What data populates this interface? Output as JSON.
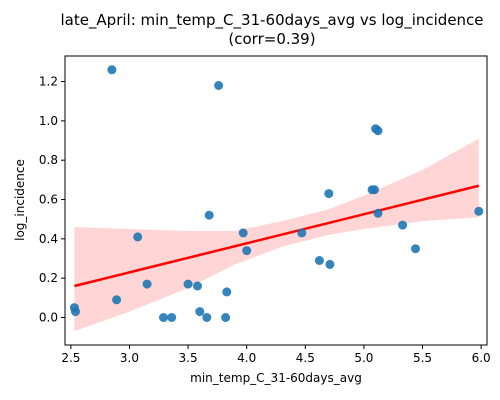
{
  "chart_data": {
    "type": "scatter",
    "title": "late_April: min_temp_C_31-60days_avg vs log_incidence",
    "subtitle": "(corr=0.39)",
    "xlabel": "min_temp_C_31-60days_avg",
    "ylabel": "log_incidence",
    "xlim": [
      2.45,
      6.05
    ],
    "ylim": [
      -0.14,
      1.33
    ],
    "xticks": [
      2.5,
      3.0,
      3.5,
      4.0,
      4.5,
      5.0,
      5.5,
      6.0
    ],
    "xtick_labels": [
      "2.5",
      "3.0",
      "3.5",
      "4.0",
      "4.5",
      "5.0",
      "5.5",
      "6.0"
    ],
    "yticks": [
      0.0,
      0.2,
      0.4,
      0.6,
      0.8,
      1.0,
      1.2
    ],
    "ytick_labels": [
      "0.0",
      "0.2",
      "0.4",
      "0.6",
      "0.8",
      "1.0",
      "1.2"
    ],
    "grid": false,
    "point_color": "#1f77b4",
    "line_color": "#ff0000",
    "band_color": "#ffb3b3",
    "points": [
      {
        "x": 2.53,
        "y": 0.05
      },
      {
        "x": 2.54,
        "y": 0.03
      },
      {
        "x": 2.85,
        "y": 1.26
      },
      {
        "x": 2.89,
        "y": 0.09
      },
      {
        "x": 3.07,
        "y": 0.41
      },
      {
        "x": 3.15,
        "y": 0.17
      },
      {
        "x": 3.29,
        "y": 0.0
      },
      {
        "x": 3.36,
        "y": 0.0
      },
      {
        "x": 3.5,
        "y": 0.17
      },
      {
        "x": 3.58,
        "y": 0.16
      },
      {
        "x": 3.6,
        "y": 0.03
      },
      {
        "x": 3.66,
        "y": 0.0
      },
      {
        "x": 3.68,
        "y": 0.52
      },
      {
        "x": 3.76,
        "y": 1.18
      },
      {
        "x": 3.82,
        "y": 0.0
      },
      {
        "x": 3.83,
        "y": 0.13
      },
      {
        "x": 3.97,
        "y": 0.43
      },
      {
        "x": 4.0,
        "y": 0.34
      },
      {
        "x": 4.47,
        "y": 0.43
      },
      {
        "x": 4.62,
        "y": 0.29
      },
      {
        "x": 4.7,
        "y": 0.63
      },
      {
        "x": 4.71,
        "y": 0.27
      },
      {
        "x": 5.07,
        "y": 0.65
      },
      {
        "x": 5.09,
        "y": 0.65
      },
      {
        "x": 5.1,
        "y": 0.96
      },
      {
        "x": 5.12,
        "y": 0.95
      },
      {
        "x": 5.12,
        "y": 0.53
      },
      {
        "x": 5.33,
        "y": 0.47
      },
      {
        "x": 5.44,
        "y": 0.35
      },
      {
        "x": 5.98,
        "y": 0.54
      }
    ],
    "regression": {
      "x": [
        2.53,
        5.98
      ],
      "y": [
        0.16,
        0.67
      ]
    },
    "confidence_band": {
      "x": [
        2.53,
        3.0,
        3.5,
        3.9,
        4.3,
        4.7,
        5.0,
        5.5,
        5.98
      ],
      "upper": [
        0.46,
        0.45,
        0.44,
        0.44,
        0.49,
        0.55,
        0.62,
        0.75,
        0.91
      ],
      "lower": [
        -0.07,
        0.03,
        0.15,
        0.27,
        0.36,
        0.42,
        0.45,
        0.49,
        0.51
      ]
    }
  }
}
